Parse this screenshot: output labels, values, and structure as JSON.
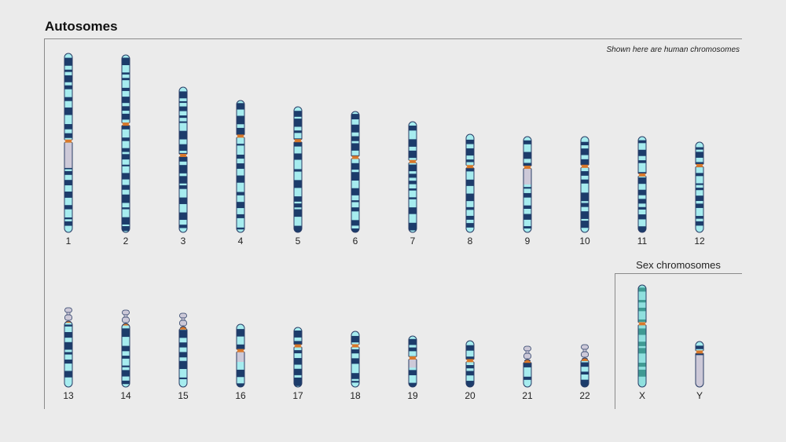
{
  "header": {
    "title": "Autosomes",
    "caption": "Shown here are human chromosomes"
  },
  "sex_section": {
    "title": "Sex chromosomes"
  },
  "colors": {
    "light_band": "#a6ecef",
    "dark_band": "#1c3c6b",
    "centromere": "#d9782a",
    "heterochromatin": "#cdc9d8",
    "outline": "#2a3d66",
    "x_light": "#8fe0de",
    "x_dark": "#3f9a93"
  },
  "chromosomes": [
    {
      "label": "1",
      "type": "autosome",
      "group": "top",
      "length": 228,
      "centromere": 0.49,
      "acrocentric": false,
      "het": [
        [
          0.5,
          0.64
        ]
      ]
    },
    {
      "label": "2",
      "type": "autosome",
      "group": "top",
      "length": 226,
      "centromere": 0.39,
      "acrocentric": false,
      "het": []
    },
    {
      "label": "3",
      "type": "autosome",
      "group": "top",
      "length": 185,
      "centromere": 0.47,
      "acrocentric": false,
      "het": []
    },
    {
      "label": "4",
      "type": "autosome",
      "group": "top",
      "length": 168,
      "centromere": 0.27,
      "acrocentric": false,
      "het": []
    },
    {
      "label": "5",
      "type": "autosome",
      "group": "top",
      "length": 160,
      "centromere": 0.27,
      "acrocentric": false,
      "het": []
    },
    {
      "label": "6",
      "type": "autosome",
      "group": "top",
      "length": 154,
      "centromere": 0.38,
      "acrocentric": false,
      "het": []
    },
    {
      "label": "7",
      "type": "autosome",
      "group": "top",
      "length": 141,
      "centromere": 0.36,
      "acrocentric": false,
      "het": []
    },
    {
      "label": "8",
      "type": "autosome",
      "group": "top",
      "length": 125,
      "centromere": 0.33,
      "acrocentric": false,
      "het": []
    },
    {
      "label": "9",
      "type": "autosome",
      "group": "top",
      "length": 122,
      "centromere": 0.32,
      "acrocentric": false,
      "het": [
        [
          0.33,
          0.5
        ]
      ]
    },
    {
      "label": "10",
      "type": "autosome",
      "group": "top",
      "length": 122,
      "centromere": 0.31,
      "acrocentric": false,
      "het": []
    },
    {
      "label": "11",
      "type": "autosome",
      "group": "top",
      "length": 122,
      "centromere": 0.4,
      "acrocentric": false,
      "het": []
    },
    {
      "label": "12",
      "type": "autosome",
      "group": "top",
      "length": 115,
      "centromere": 0.26,
      "acrocentric": false,
      "het": []
    },
    {
      "label": "13",
      "type": "autosome",
      "group": "bottom",
      "length": 101,
      "centromere": 0.17,
      "acrocentric": true,
      "het": []
    },
    {
      "label": "14",
      "type": "autosome",
      "group": "bottom",
      "length": 98,
      "centromere": 0.18,
      "acrocentric": true,
      "het": []
    },
    {
      "label": "15",
      "type": "autosome",
      "group": "bottom",
      "length": 94,
      "centromere": 0.2,
      "acrocentric": true,
      "het": []
    },
    {
      "label": "16",
      "type": "autosome",
      "group": "bottom",
      "length": 80,
      "centromere": 0.42,
      "acrocentric": false,
      "het": [
        [
          0.44,
          0.6
        ]
      ]
    },
    {
      "label": "17",
      "type": "autosome",
      "group": "bottom",
      "length": 76,
      "centromere": 0.31,
      "acrocentric": false,
      "het": []
    },
    {
      "label": "18",
      "type": "autosome",
      "group": "bottom",
      "length": 71,
      "centromere": 0.26,
      "acrocentric": false,
      "het": []
    },
    {
      "label": "19",
      "type": "autosome",
      "group": "bottom",
      "length": 65,
      "centromere": 0.43,
      "acrocentric": false,
      "het": [
        [
          0.4,
          0.62
        ]
      ]
    },
    {
      "label": "20",
      "type": "autosome",
      "group": "bottom",
      "length": 59,
      "centromere": 0.43,
      "acrocentric": false,
      "het": []
    },
    {
      "label": "21",
      "type": "autosome",
      "group": "bottom",
      "length": 52,
      "centromere": 0.37,
      "acrocentric": true,
      "het": []
    },
    {
      "label": "22",
      "type": "autosome",
      "group": "bottom",
      "length": 54,
      "centromere": 0.35,
      "acrocentric": true,
      "het": []
    },
    {
      "label": "X",
      "type": "sex",
      "group": "bottom",
      "length": 130,
      "centromere": 0.38,
      "acrocentric": false,
      "het": []
    },
    {
      "label": "Y",
      "type": "sex",
      "group": "bottom",
      "length": 58,
      "centromere": 0.23,
      "acrocentric": false,
      "het": [
        [
          0.3,
          1.0
        ]
      ]
    }
  ]
}
